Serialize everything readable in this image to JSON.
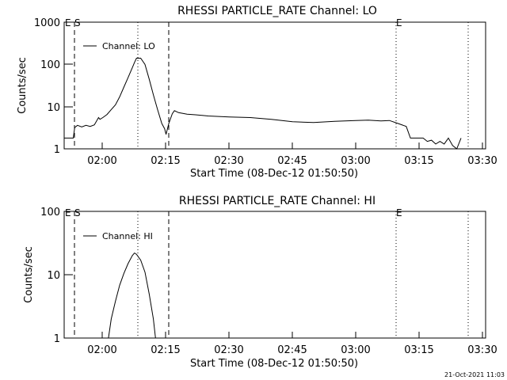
{
  "footer": {
    "timestamp": "21-Oct-2021 11:03"
  },
  "chart_data": [
    {
      "type": "line",
      "title": "RHESSI PARTICLE_RATE Channel: LO",
      "xlabel": "Start Time (08-Dec-12 01:50:50)",
      "ylabel": "Counts/sec",
      "y_scale": "log",
      "ylim": [
        1,
        1000
      ],
      "y_ticks": [
        1,
        10,
        100,
        1000
      ],
      "y_tick_labels": [
        "1",
        "10",
        "100",
        "1000"
      ],
      "x_ticks": [
        "02:00",
        "02:15",
        "02:30",
        "02:45",
        "03:00",
        "03:15",
        "03:30"
      ],
      "xlim": [
        "01:50:50",
        "03:30:50"
      ],
      "legend": {
        "position": "top-left",
        "entries": [
          "Channel: LO"
        ]
      },
      "markers": [
        {
          "label": "E",
          "time": "01:51:00",
          "style": "dashed"
        },
        {
          "label": "S",
          "time": "01:53:00",
          "style": "dashed"
        },
        {
          "label": "",
          "time": "02:08:00",
          "style": "dotted"
        },
        {
          "label": "",
          "time": "02:15:00",
          "style": "dashed"
        },
        {
          "label": "E",
          "time": "03:08:40",
          "style": "dotted"
        },
        {
          "label": "",
          "time": "03:25:10",
          "style": "dotted"
        }
      ],
      "series": [
        {
          "name": "Channel: LO",
          "x": [
            "01:50:50",
            "01:53:00",
            "01:53:20",
            "01:54:00",
            "01:55:00",
            "01:56:00",
            "01:57:00",
            "01:58:00",
            "01:59:00",
            "01:59:20",
            "02:00:00",
            "02:01:00",
            "02:02:00",
            "02:03:00",
            "02:04:00",
            "02:05:00",
            "02:06:00",
            "02:07:00",
            "02:07:30",
            "02:08:00",
            "02:09:00",
            "02:10:00",
            "02:11:00",
            "02:12:00",
            "02:13:00",
            "02:14:00",
            "02:14:40",
            "02:15:00",
            "02:15:40",
            "02:16:30",
            "02:17:00",
            "02:18:00",
            "02:20:00",
            "02:22:00",
            "02:25:00",
            "02:28:00",
            "02:30:00",
            "02:35:00",
            "02:40:00",
            "02:45:00",
            "02:50:00",
            "02:55:00",
            "03:00:00",
            "03:03:00",
            "03:06:00",
            "03:08:00",
            "03:10:00",
            "03:12:00",
            "03:13:00",
            "03:15:00",
            "03:16:00",
            "03:17:00",
            "03:18:00",
            "03:19:00",
            "03:20:00",
            "03:21:00",
            "03:22:00",
            "03:23:00",
            "03:24:00",
            "03:25:00"
          ],
          "values": [
            1.8,
            1.8,
            3.2,
            3.6,
            3.3,
            3.6,
            3.4,
            3.7,
            5.5,
            5.0,
            5.5,
            6.5,
            8.5,
            11,
            17,
            29,
            49,
            83,
            110,
            140,
            140,
            100,
            45,
            19,
            8.5,
            4.0,
            3.0,
            2.2,
            4.0,
            6.8,
            8.0,
            7.2,
            6.6,
            6.4,
            6.0,
            5.8,
            5.7,
            5.5,
            5.0,
            4.4,
            4.2,
            4.5,
            4.7,
            4.8,
            4.6,
            4.7,
            4.0,
            3.4,
            1.8,
            1.8,
            1.8,
            1.5,
            1.6,
            1.3,
            1.5,
            1.3,
            1.8,
            1.2,
            1.0,
            1.8
          ]
        }
      ]
    },
    {
      "type": "line",
      "title": "RHESSI PARTICLE_RATE Channel: HI",
      "xlabel": "Start Time (08-Dec-12 01:50:50)",
      "ylabel": "Counts/sec",
      "y_scale": "log",
      "ylim": [
        1,
        100
      ],
      "y_ticks": [
        1,
        10,
        100
      ],
      "y_tick_labels": [
        "1",
        "10",
        "100"
      ],
      "x_ticks": [
        "02:00",
        "02:15",
        "02:30",
        "02:45",
        "03:00",
        "03:15",
        "03:30"
      ],
      "xlim": [
        "01:50:50",
        "03:30:50"
      ],
      "legend": {
        "position": "top-left",
        "entries": [
          "Channel: HI"
        ]
      },
      "markers": [
        {
          "label": "E",
          "time": "01:51:00",
          "style": "dashed"
        },
        {
          "label": "S",
          "time": "01:53:00",
          "style": "dashed"
        },
        {
          "label": "",
          "time": "02:08:00",
          "style": "dotted"
        },
        {
          "label": "",
          "time": "02:15:00",
          "style": "dashed"
        },
        {
          "label": "E",
          "time": "03:08:40",
          "style": "dotted"
        },
        {
          "label": "",
          "time": "03:25:10",
          "style": "dotted"
        }
      ],
      "series": [
        {
          "name": "Channel: HI",
          "x": [
            "02:01:20",
            "02:02:00",
            "02:03:00",
            "02:04:00",
            "02:05:00",
            "02:06:00",
            "02:07:00",
            "02:07:30",
            "02:08:00",
            "02:09:00",
            "02:10:00",
            "02:11:00",
            "02:12:00",
            "02:12:30"
          ],
          "values": [
            1.0,
            2.0,
            3.8,
            6.8,
            10.5,
            15,
            20,
            22,
            21,
            17,
            11,
            5.0,
            2.0,
            1.0
          ]
        }
      ]
    }
  ]
}
